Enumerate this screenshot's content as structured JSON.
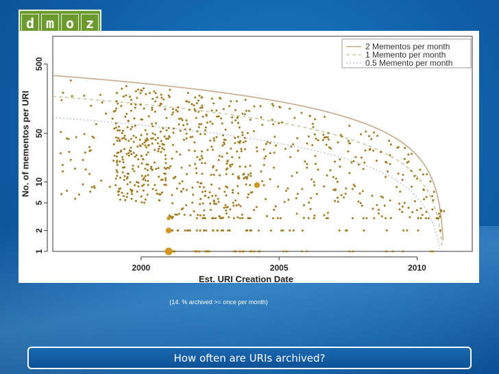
{
  "logo": {
    "letters": [
      "d",
      "m",
      "o",
      "z"
    ]
  },
  "chart_data": {
    "type": "scatter",
    "xlabel": "Est. URI Creation Date",
    "ylabel": "No. of mementos per URI",
    "xlim": [
      1996.8,
      2012.0
    ],
    "ylim": [
      1,
      1250
    ],
    "yscale": "log",
    "xticks": [
      2000,
      2005,
      2010
    ],
    "yticks": [
      1,
      2,
      5,
      10,
      50,
      500
    ],
    "legend_position": "top-right",
    "lines": [
      {
        "name": "2 Mementos per month",
        "rate_per_month": 2,
        "style": "solid",
        "color": "#c9a88a"
      },
      {
        "name": "1 Memento per month",
        "rate_per_month": 1,
        "style": "dashed",
        "color": "#c8c9a2"
      },
      {
        "name": "0.5 Memento per month",
        "rate_per_month": 0.5,
        "style": "dotted",
        "color": "#b9c6d8"
      }
    ],
    "reference_date": 2011.0,
    "highlighted_points": [
      {
        "x": 2001.0,
        "y": 1,
        "size": "large"
      },
      {
        "x": 2001.0,
        "y": 2,
        "size": "medium"
      },
      {
        "x": 2001.0,
        "y": 3,
        "size": "small"
      },
      {
        "x": 2004.2,
        "y": 9,
        "size": "medium"
      }
    ],
    "point_color": "#a07a1e",
    "point_count_approx": 900
  },
  "caption_note": "(14.  % archived >= once per month)",
  "slide_title": "How often are URIs archived?"
}
